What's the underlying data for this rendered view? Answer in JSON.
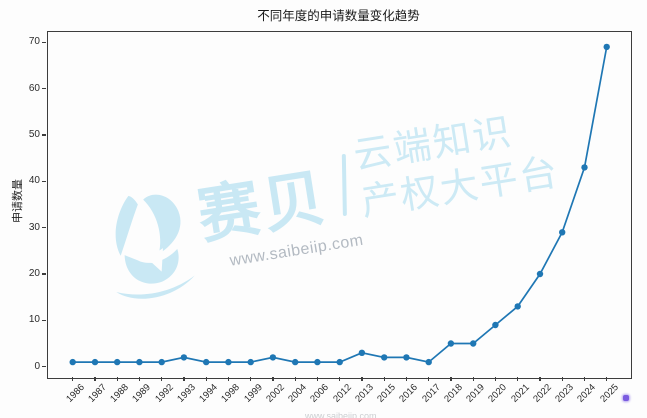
{
  "chart_data": {
    "type": "line",
    "title": "不同年度的申请数量变化趋势",
    "xlabel": "",
    "ylabel": "申请数量",
    "categories": [
      "1986",
      "1987",
      "1988",
      "1989",
      "1992",
      "1993",
      "1994",
      "1998",
      "1999",
      "2002",
      "2004",
      "2006",
      "2012",
      "2013",
      "2015",
      "2016",
      "2017",
      "2018",
      "2019",
      "2020",
      "2021",
      "2022",
      "2023",
      "2024",
      "2025"
    ],
    "values": [
      1,
      1,
      1,
      1,
      1,
      2,
      1,
      1,
      1,
      2,
      1,
      1,
      1,
      3,
      2,
      2,
      1,
      5,
      5,
      9,
      13,
      20,
      29,
      43,
      69
    ],
    "ylim": [
      0,
      70
    ],
    "yticks": [
      0,
      10,
      20,
      30,
      40,
      50,
      60,
      70
    ],
    "grid": false,
    "legend": "none",
    "line_color": "#1f77b4",
    "marker": "circle"
  },
  "watermark": {
    "brand": "赛贝",
    "url": "www.saibeiip.com",
    "tagline_line1": "云端知识",
    "tagline_line2": "产权大平台",
    "brand_color": "#c9e8f4",
    "url_color": "#b3bac2"
  },
  "artifacts": {
    "stray_dot_color": "#7a5be0",
    "edge_strip_color": "#ededed",
    "bottom_remnant_text": "www.saibeiip.com"
  }
}
